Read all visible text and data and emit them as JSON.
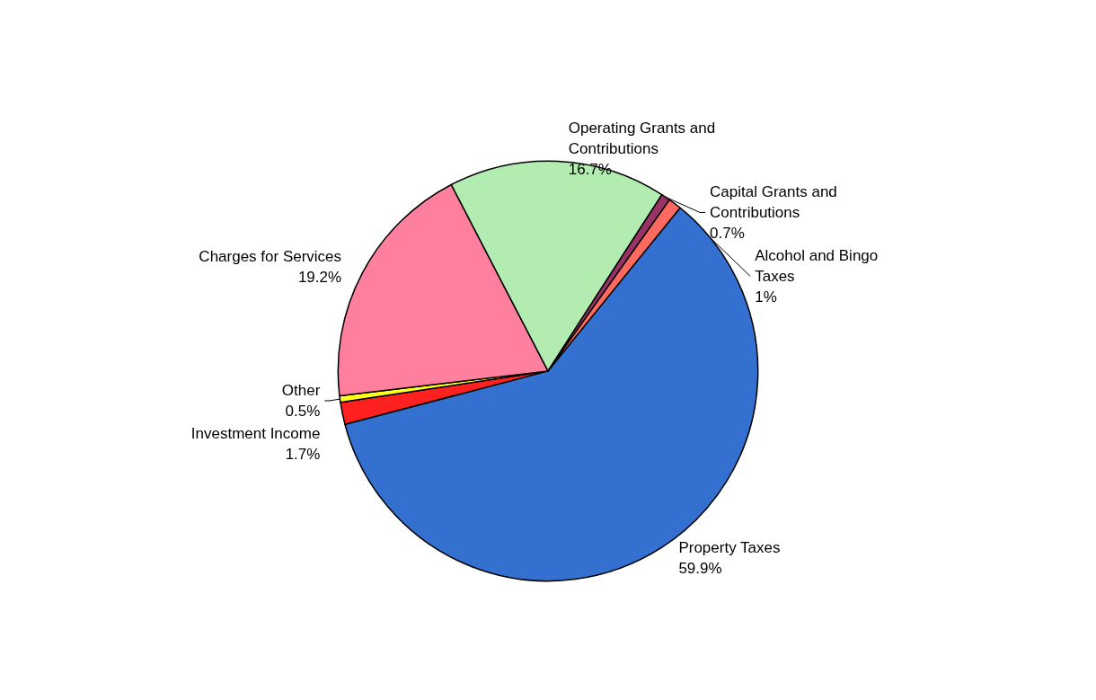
{
  "chart_data": {
    "type": "pie",
    "categories": [
      "Property Taxes",
      "Investment Income",
      "Other",
      "Charges for Services",
      "Operating Grants and Contributions",
      "Capital Grants and Contributions",
      "Alcohol and Bingo Taxes"
    ],
    "values": [
      59.9,
      1.7,
      0.5,
      19.2,
      16.7,
      0.7,
      1
    ],
    "value_labels": [
      "59.9%",
      "1.7%",
      "0.5%",
      "19.2%",
      "16.7%",
      "0.7%",
      "1%"
    ],
    "colors": [
      "#3370d0",
      "#ff2020",
      "#ffff20",
      "#ff809e",
      "#b2ecb0",
      "#993366",
      "#ff6a60"
    ],
    "legend": false
  }
}
